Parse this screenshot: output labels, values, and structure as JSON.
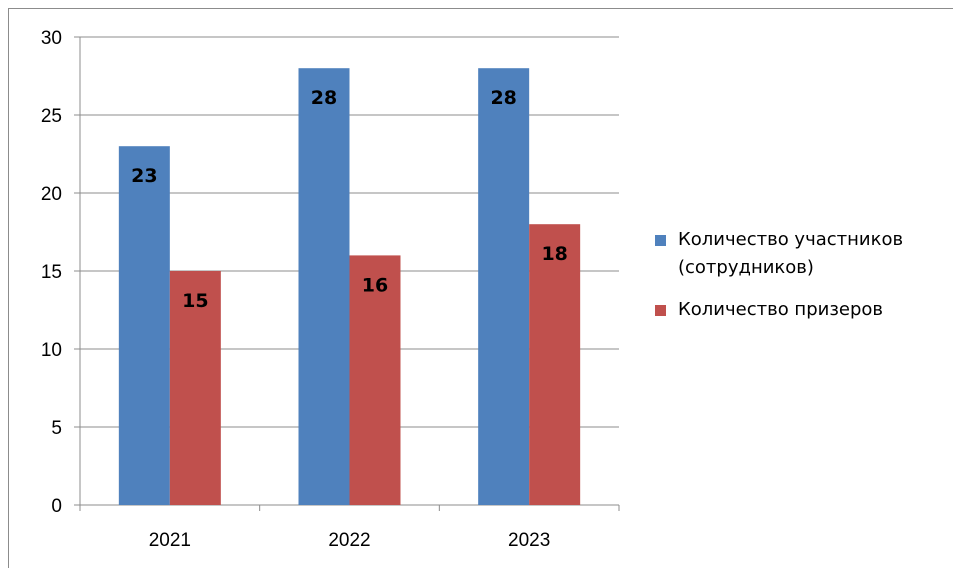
{
  "chart_data": {
    "type": "bar",
    "categories": [
      "2021",
      "2022",
      "2023"
    ],
    "series": [
      {
        "name": "Количество участников (сотрудников)",
        "values": [
          23,
          28,
          28
        ],
        "color": "#4F81BD"
      },
      {
        "name": "Количество призеров",
        "values": [
          15,
          16,
          18
        ],
        "color": "#C0504D"
      }
    ],
    "ylim": [
      0,
      30
    ],
    "yticks": [
      "0",
      "5",
      "10",
      "15",
      "20",
      "25",
      "30"
    ],
    "grid": true,
    "legend_position": "right",
    "data_labels": true
  }
}
